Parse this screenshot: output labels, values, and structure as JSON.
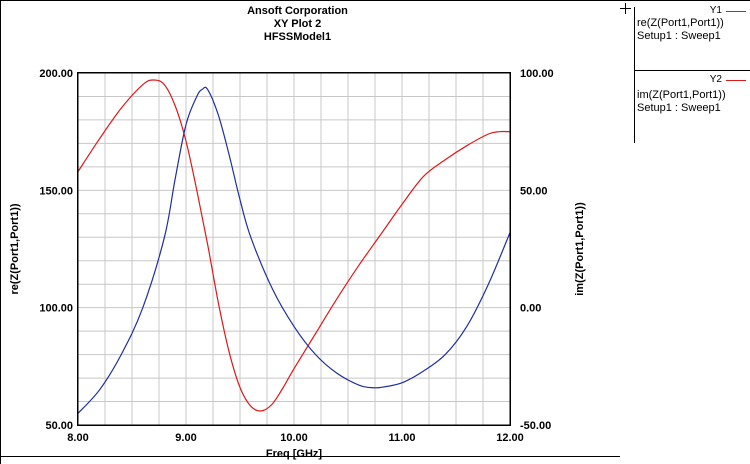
{
  "header": {
    "company": "Ansoft Corporation",
    "plot_name": "XY Plot 2",
    "model_name": "HFSSModel1"
  },
  "legend": {
    "y1_axis": "Y1",
    "y1_trace": "re(Z(Port1,Port1))",
    "y1_setup": "Setup1 : Sweep1",
    "y2_axis": "Y2",
    "y2_trace": "im(Z(Port1,Port1))",
    "y2_setup": "Setup1 : Sweep1"
  },
  "colors": {
    "re_trace": "#e01818",
    "im_trace": "#1f2f9f",
    "grid": "#c8c8c8"
  },
  "chart_data": {
    "type": "line",
    "title": "XY Plot 2",
    "xlabel": "Freq [GHz]",
    "ylabel_left": "re(Z(Port1,Port1))",
    "ylabel_right": "im(Z(Port1,Port1))",
    "xlim": [
      8.0,
      12.0
    ],
    "ylim_left": [
      50.0,
      200.0
    ],
    "ylim_right": [
      -50.0,
      100.0
    ],
    "x_ticks": [
      "8.00",
      "9.00",
      "10.00",
      "11.00",
      "12.00"
    ],
    "y_left_ticks": [
      "200.00",
      "150.00",
      "100.00",
      "50.00"
    ],
    "y_right_ticks": [
      "100.00",
      "50.00",
      "0.00",
      "-50.00"
    ],
    "grid": true,
    "series": [
      {
        "name": "re(Z(Port1,Port1))",
        "axis": "left",
        "color": "#e01818",
        "x": [
          8.0,
          8.2,
          8.4,
          8.6,
          8.7,
          8.8,
          8.9,
          9.0,
          9.1,
          9.2,
          9.3,
          9.4,
          9.5,
          9.6,
          9.7,
          9.8,
          9.9,
          10.0,
          10.2,
          10.4,
          10.6,
          10.8,
          11.0,
          11.2,
          11.4,
          11.6,
          11.8,
          11.9,
          12.0
        ],
        "y": [
          158,
          172,
          185,
          195,
          197,
          195,
          186,
          171,
          150,
          127,
          102,
          81,
          66,
          58,
          56,
          59,
          66,
          74,
          89,
          104,
          118,
          131,
          144,
          156,
          163,
          169,
          174,
          175,
          175
        ]
      },
      {
        "name": "im(Z(Port1,Port1))",
        "axis": "right",
        "color": "#1f2f9f",
        "x": [
          8.0,
          8.2,
          8.4,
          8.6,
          8.8,
          8.9,
          9.0,
          9.1,
          9.15,
          9.2,
          9.3,
          9.4,
          9.5,
          9.6,
          9.8,
          10.0,
          10.2,
          10.4,
          10.6,
          10.7,
          10.8,
          11.0,
          11.2,
          11.4,
          11.6,
          11.8,
          12.0
        ],
        "y": [
          -45,
          -35,
          -20,
          0,
          30,
          55,
          78,
          90,
          93,
          93,
          82,
          65,
          46,
          30,
          8,
          -8,
          -20,
          -28,
          -33,
          -34,
          -34,
          -32,
          -27,
          -20,
          -8,
          10,
          32
        ]
      }
    ]
  }
}
